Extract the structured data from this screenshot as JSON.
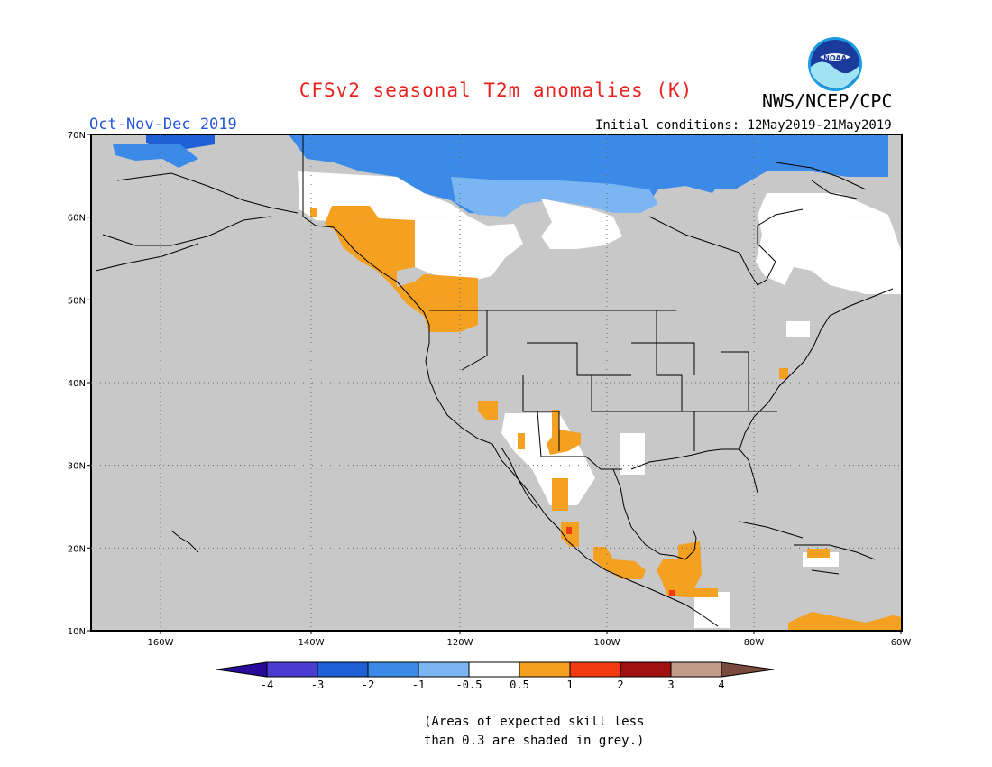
{
  "title": "CFSv2 seasonal T2m anomalies (K)",
  "agency": "NWS/NCEP/CPC",
  "season": "Oct-Nov-Dec 2019",
  "initial_conditions": "Initial conditions: 12May2019-21May2019",
  "logo_text": "NOAA",
  "map": {
    "lon_labels": [
      "160W",
      "140W",
      "120W",
      "100W",
      "80W",
      "60W"
    ],
    "lat_labels": [
      "70N",
      "60N",
      "50N",
      "40N",
      "30N",
      "20N",
      "10N"
    ],
    "land_mask_color": "#c8c8c8",
    "regions": [
      {
        "name": "Alaska North Slope",
        "category": "-3 to -2",
        "color": "#1f5fd6"
      },
      {
        "name": "Northern Canada / Arctic Archipelago",
        "category": "-2 to -1",
        "color": "#3b8ae8"
      },
      {
        "name": "Northern Canada margins",
        "category": "-1 to -0.5",
        "color": "#7bb5f2"
      },
      {
        "name": "Yukon / NW Territories / Quebec",
        "category": "-0.5 to 0.5",
        "color": "#ffffff"
      },
      {
        "name": "Pacific Northwest / British Columbia",
        "category": "0.5 to 1",
        "color": "#f4a020"
      },
      {
        "name": "Southern Mexico / Central America",
        "category": "0.5 to 1",
        "color": "#f4a020"
      }
    ]
  },
  "colorbar": {
    "labels": [
      "-4",
      "-3",
      "-2",
      "-1",
      "-0.5",
      "0.5",
      "1",
      "2",
      "3",
      "4"
    ],
    "colors": [
      "#2a0a9a",
      "#4a3cd0",
      "#1f5fd6",
      "#3b8ae8",
      "#7bb5f2",
      "#ffffff",
      "#f4a020",
      "#f23a10",
      "#a01010",
      "#c49c8c",
      "#7a4a3c"
    ]
  },
  "note_lines": [
    "(Areas of expected skill less",
    "than 0.3 are shaded in grey.)"
  ]
}
